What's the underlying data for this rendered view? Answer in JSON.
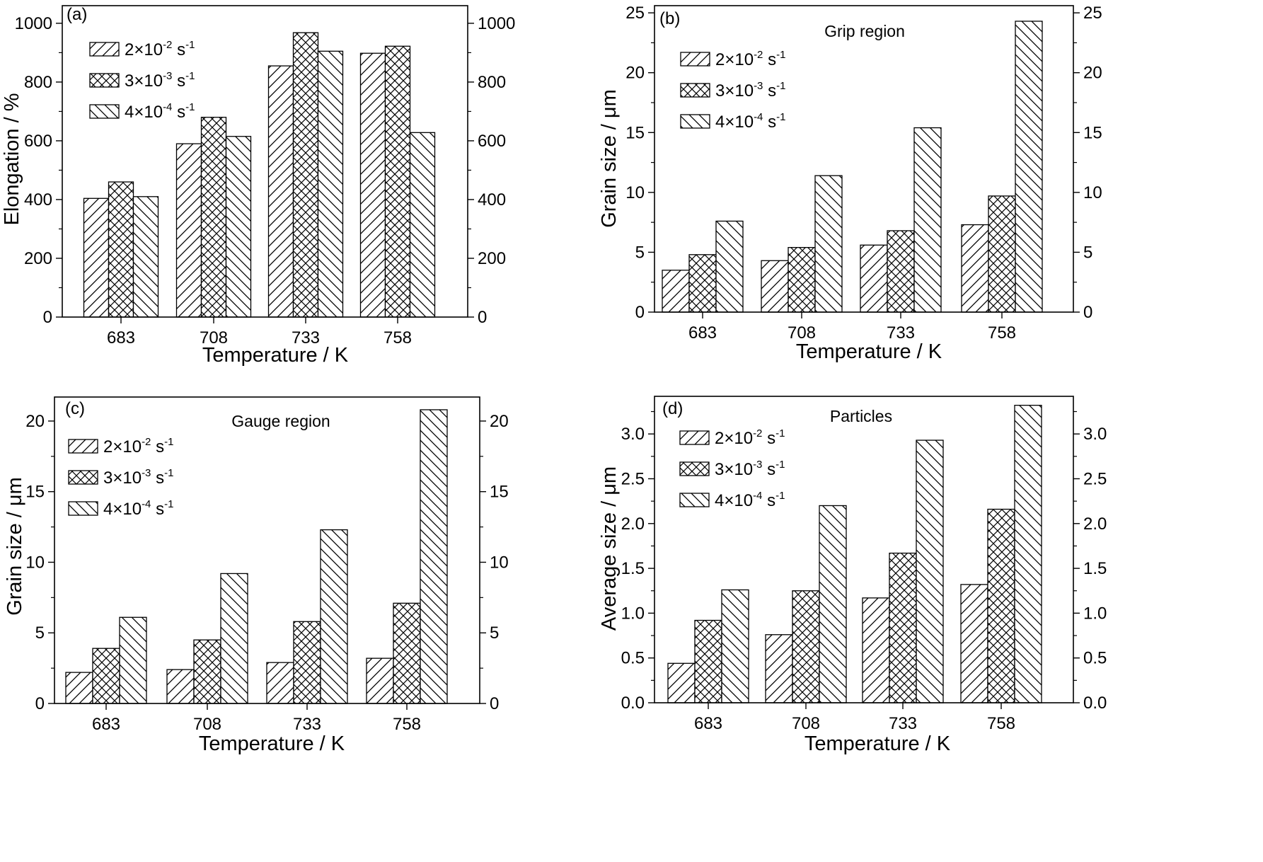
{
  "legend": [
    {
      "mantissa": "2×10",
      "exponent": "-2",
      "unit": " s",
      "unit_exponent": "-1",
      "pattern": "hatch-fwd"
    },
    {
      "mantissa": "3×10",
      "exponent": "-3",
      "unit": " s",
      "unit_exponent": "-1",
      "pattern": "hatch-cross"
    },
    {
      "mantissa": "4×10",
      "exponent": "-4",
      "unit": " s",
      "unit_exponent": "-1",
      "pattern": "hatch-back"
    }
  ],
  "chart_data": [
    {
      "type": "bar",
      "panel_label": "(a)",
      "region_label": "",
      "xlabel": "Temperature / K",
      "ylabel": "Elongation / %",
      "categories": [
        "683",
        "708",
        "733",
        "758"
      ],
      "ylim": [
        0,
        1060
      ],
      "yticks": [
        0,
        200,
        400,
        600,
        800,
        1000
      ],
      "ytick_labels": [
        "0",
        "200",
        "400",
        "600",
        "800",
        "1000"
      ],
      "right_axis": true,
      "series": [
        {
          "name": "2×10-2 s-1",
          "values": [
            404,
            590,
            855,
            898
          ]
        },
        {
          "name": "3×10-3 s-1",
          "values": [
            460,
            680,
            968,
            922
          ]
        },
        {
          "name": "4×10-4 s-1",
          "values": [
            410,
            615,
            905,
            628
          ]
        }
      ]
    },
    {
      "type": "bar",
      "panel_label": "(b)",
      "region_label": "Grip region",
      "xlabel": "Temperature / K",
      "ylabel": "Grain size / μm",
      "categories": [
        "683",
        "708",
        "733",
        "758"
      ],
      "ylim": [
        0,
        25.6
      ],
      "yticks": [
        0,
        5,
        10,
        15,
        20,
        25
      ],
      "ytick_labels": [
        "0",
        "5",
        "10",
        "15",
        "20",
        "25"
      ],
      "right_axis": true,
      "series": [
        {
          "name": "2×10-2 s-1",
          "values": [
            3.5,
            4.3,
            5.6,
            7.3
          ]
        },
        {
          "name": "3×10-3 s-1",
          "values": [
            4.8,
            5.4,
            6.8,
            9.7
          ]
        },
        {
          "name": "4×10-4 s-1",
          "values": [
            7.6,
            11.4,
            15.4,
            24.3
          ]
        }
      ]
    },
    {
      "type": "bar",
      "panel_label": "(c)",
      "region_label": "Gauge region",
      "xlabel": "Temperature / K",
      "ylabel": "Grain size / μm",
      "categories": [
        "683",
        "708",
        "733",
        "758"
      ],
      "ylim": [
        0,
        21.7
      ],
      "yticks": [
        0,
        5,
        10,
        15,
        20
      ],
      "ytick_labels": [
        "0",
        "5",
        "10",
        "15",
        "20"
      ],
      "right_axis": true,
      "series": [
        {
          "name": "2×10-2 s-1",
          "values": [
            2.2,
            2.4,
            2.9,
            3.2
          ]
        },
        {
          "name": "3×10-3 s-1",
          "values": [
            3.9,
            4.5,
            5.8,
            7.1
          ]
        },
        {
          "name": "4×10-4 s-1",
          "values": [
            6.1,
            9.2,
            12.3,
            20.8
          ]
        }
      ]
    },
    {
      "type": "bar",
      "panel_label": "(d)",
      "region_label": "Particles",
      "xlabel": "Temperature / K",
      "ylabel": "Average size / μm",
      "categories": [
        "683",
        "708",
        "733",
        "758"
      ],
      "ylim": [
        0,
        3.42
      ],
      "yticks": [
        0,
        0.5,
        1.0,
        1.5,
        2.0,
        2.5,
        3.0
      ],
      "ytick_labels": [
        "0.0",
        "0.5",
        "1.0",
        "1.5",
        "2.0",
        "2.5",
        "3.0"
      ],
      "right_axis": true,
      "series": [
        {
          "name": "2×10-2 s-1",
          "values": [
            0.44,
            0.76,
            1.17,
            1.32
          ]
        },
        {
          "name": "3×10-3 s-1",
          "values": [
            0.92,
            1.25,
            1.67,
            2.16
          ]
        },
        {
          "name": "4×10-4 s-1",
          "values": [
            1.26,
            2.2,
            2.93,
            3.32
          ]
        }
      ]
    }
  ]
}
